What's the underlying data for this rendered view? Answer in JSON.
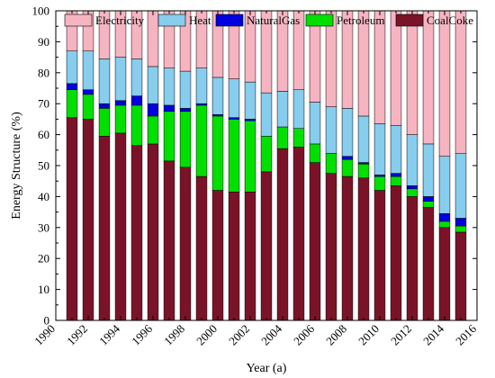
{
  "chart_data": {
    "type": "bar",
    "stacked": true,
    "xlabel": "Year (a)",
    "ylabel": "Energy Structure (%)",
    "ylim": [
      0,
      100
    ],
    "xlim": [
      1990,
      2016
    ],
    "x_ticks": [
      1990,
      1992,
      1994,
      1996,
      1998,
      2000,
      2002,
      2004,
      2006,
      2008,
      2010,
      2012,
      2014,
      2016
    ],
    "y_ticks": [
      0,
      10,
      20,
      30,
      40,
      50,
      60,
      70,
      80,
      90,
      100
    ],
    "legend_position": "top",
    "categories": [
      1991,
      1992,
      1993,
      1994,
      1995,
      1996,
      1997,
      1998,
      1999,
      2000,
      2001,
      2002,
      2003,
      2004,
      2005,
      2006,
      2007,
      2008,
      2009,
      2010,
      2011,
      2012,
      2013,
      2014,
      2015
    ],
    "series": [
      {
        "name": "CoalCoke",
        "color": "#7b1328",
        "values": [
          65.5,
          65,
          59.5,
          60.5,
          56.5,
          57,
          51.5,
          49.5,
          46.5,
          42,
          41.5,
          41.5,
          48,
          55.5,
          56,
          51,
          47.5,
          46.5,
          46,
          42,
          43.5,
          40,
          36.5,
          30,
          28.5
        ]
      },
      {
        "name": "Petroleum",
        "color": "#00e000",
        "values": [
          9,
          8,
          9,
          9,
          13,
          9,
          16,
          18,
          23,
          24,
          23.5,
          23,
          11.5,
          7,
          6,
          6,
          6.5,
          5.5,
          4.5,
          4.5,
          3,
          2.5,
          2,
          2,
          2
        ]
      },
      {
        "name": "NaturalGas",
        "color": "#0000e0",
        "values": [
          2,
          1.5,
          1.5,
          1.5,
          3,
          4,
          2,
          1,
          0.5,
          0.5,
          0.5,
          0.5,
          0,
          0,
          0,
          0,
          0,
          1,
          0.5,
          0.5,
          1,
          1,
          1.5,
          2.5,
          2.5
        ]
      },
      {
        "name": "Heat",
        "color": "#87cdee",
        "values": [
          10.5,
          12.5,
          14.5,
          14,
          12,
          12,
          12,
          12,
          11.5,
          12,
          12.5,
          12,
          14,
          11.5,
          12.5,
          13.5,
          15,
          15.5,
          15,
          16.5,
          15.5,
          16.5,
          17,
          18.5,
          21
        ]
      },
      {
        "name": "Electricity",
        "color": "#f6b4c1",
        "values": [
          13,
          13,
          15.5,
          15,
          15.5,
          18,
          18.5,
          19.5,
          18.5,
          21.5,
          22,
          23,
          26.5,
          26,
          25.5,
          29.5,
          31,
          31.5,
          34,
          36.5,
          37,
          40,
          43,
          47,
          46
        ]
      }
    ],
    "legend_order": [
      "Electricity",
      "Heat",
      "NaturalGas",
      "Petroleum",
      "CoalCoke"
    ]
  }
}
